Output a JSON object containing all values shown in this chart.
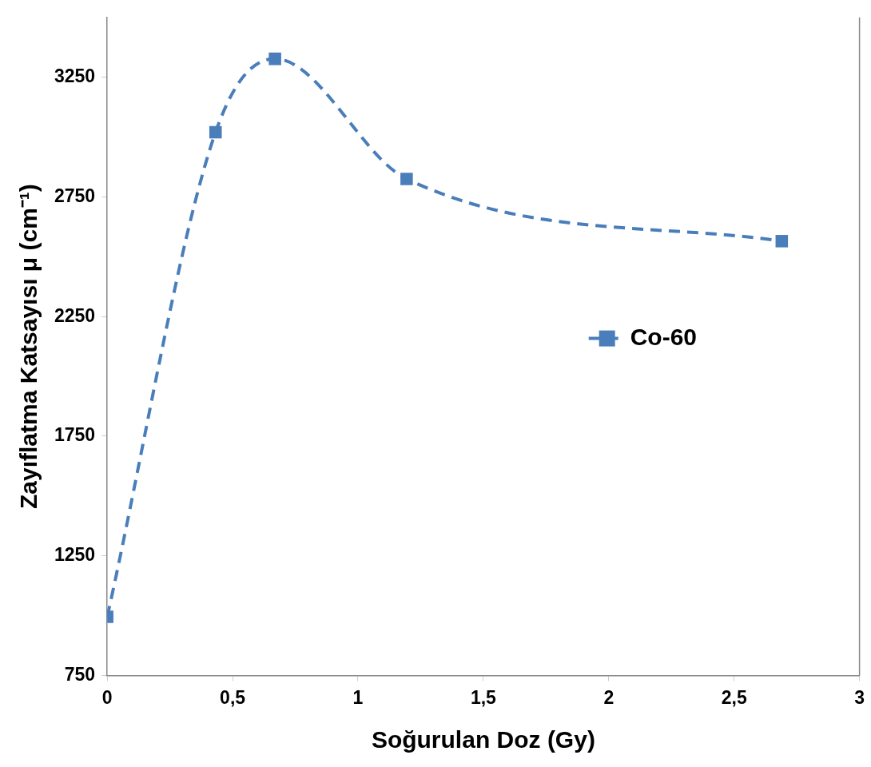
{
  "chart_data": {
    "type": "line",
    "xlabel": "Soğurulan Doz (Gy)",
    "ylabel": "Zayıflatma Katsayısı μ (cm⁻¹)",
    "x": [
      0,
      0.432,
      0.669,
      1.194,
      2.69
    ],
    "series": [
      {
        "name": "Co-60",
        "color": "#4a7ebb",
        "values": [
          995,
          3020,
          3327,
          2825,
          2565
        ]
      }
    ],
    "xlim": [
      0,
      3
    ],
    "xticks": [
      0,
      {
        "value": 0.5,
        "label": "0,5"
      },
      1,
      {
        "value": 1.5,
        "label": "1,5"
      },
      2,
      {
        "value": 2.5,
        "label": "2,5"
      },
      3
    ],
    "ylim": [
      750,
      3500
    ],
    "yticks": [
      750,
      1250,
      1750,
      2250,
      2750,
      3250
    ],
    "grid": false,
    "legend": "right",
    "marker": "square",
    "line_style": "dashed"
  }
}
